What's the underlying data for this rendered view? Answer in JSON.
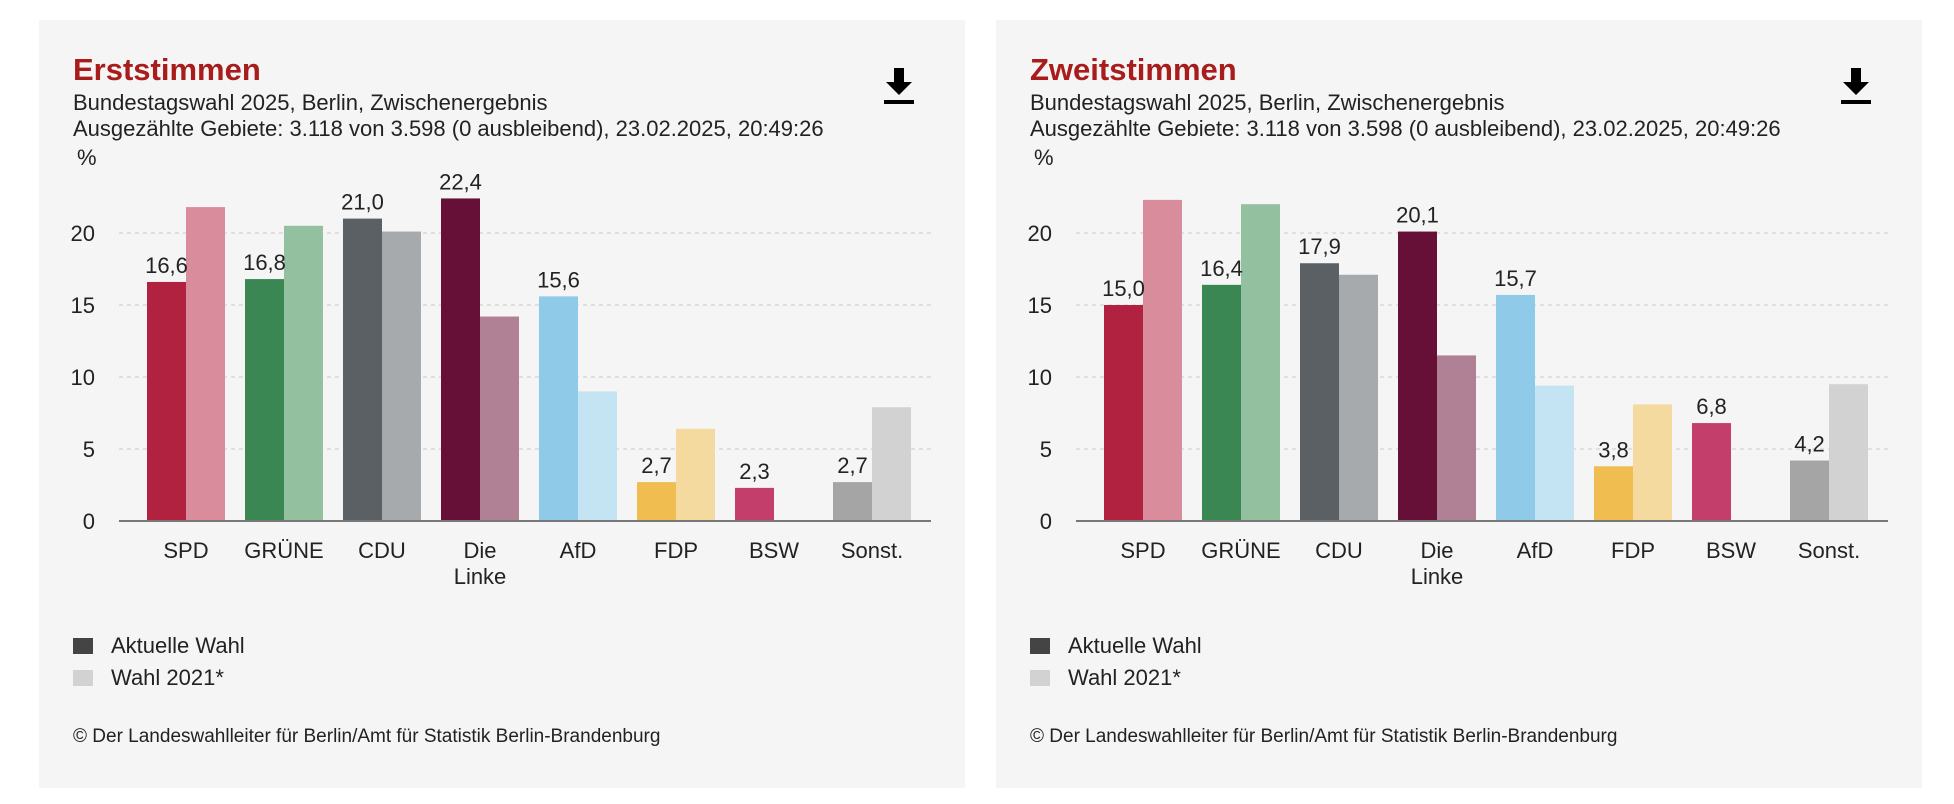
{
  "legend": {
    "current": "Aktuelle Wahl",
    "previous": "Wahl 2021*",
    "current_color": "#444444",
    "previous_color": "#d2d2d2"
  },
  "footer": "© Der Landeswahlleiter für Berlin/Amt für Statistik Berlin-Brandenburg",
  "download_icon": "download-icon",
  "chart_data": [
    {
      "type": "bar",
      "title": "Erststimmen",
      "subtitle": "Bundestagswahl 2025, Berlin, Zwischenergebnis",
      "info": "Ausgezählte Gebiete: 3.118 von 3.598 (0 ausbleibend), 23.02.2025, 20:49:26",
      "ylabel": "%",
      "ylim": [
        0,
        25
      ],
      "yticks": [
        0,
        5,
        10,
        15,
        20
      ],
      "grid": true,
      "categories": [
        [
          "SPD"
        ],
        [
          "GRÜNE"
        ],
        [
          "CDU"
        ],
        [
          "Die",
          "Linke"
        ],
        [
          "AfD"
        ],
        [
          "FDP"
        ],
        [
          "BSW"
        ],
        [
          "Sonst."
        ]
      ],
      "colors": [
        "#b02240",
        "#3a8753",
        "#5a6064",
        "#661038",
        "#8fcae9",
        "#f0bd50",
        "#c33e6a",
        "#a5a5a5"
      ],
      "prev_colors": [
        "#d88c9c",
        "#93c09f",
        "#a6aaac",
        "#b08194",
        "#c4e4f4",
        "#f5da9f",
        "#dd9ab2",
        "#d2d2d2"
      ],
      "series": [
        {
          "name": "Aktuelle Wahl",
          "values": [
            16.6,
            16.8,
            21.0,
            22.4,
            15.6,
            2.7,
            2.3,
            2.7
          ],
          "labels": [
            "16,6",
            "16,8",
            "21,0",
            "22,4",
            "15,6",
            "2,7",
            "2,3",
            "2,7"
          ]
        },
        {
          "name": "Wahl 2021*",
          "values": [
            21.8,
            20.5,
            20.1,
            14.2,
            9.0,
            6.4,
            null,
            7.9
          ]
        }
      ]
    },
    {
      "type": "bar",
      "title": "Zweitstimmen",
      "subtitle": "Bundestagswahl 2025, Berlin, Zwischenergebnis",
      "info": "Ausgezählte Gebiete: 3.118 von 3.598 (0 ausbleibend), 23.02.2025, 20:49:26",
      "ylabel": "%",
      "ylim": [
        0,
        25
      ],
      "yticks": [
        0,
        5,
        10,
        15,
        20
      ],
      "grid": true,
      "categories": [
        [
          "SPD"
        ],
        [
          "GRÜNE"
        ],
        [
          "CDU"
        ],
        [
          "Die",
          "Linke"
        ],
        [
          "AfD"
        ],
        [
          "FDP"
        ],
        [
          "BSW"
        ],
        [
          "Sonst."
        ]
      ],
      "colors": [
        "#b02240",
        "#3a8753",
        "#5a6064",
        "#661038",
        "#8fcae9",
        "#f0bd50",
        "#c33e6a",
        "#a5a5a5"
      ],
      "prev_colors": [
        "#d88c9c",
        "#93c09f",
        "#a6aaac",
        "#b08194",
        "#c4e4f4",
        "#f5da9f",
        "#dd9ab2",
        "#d2d2d2"
      ],
      "series": [
        {
          "name": "Aktuelle Wahl",
          "values": [
            15.0,
            16.4,
            17.9,
            20.1,
            15.7,
            3.8,
            6.8,
            4.2
          ],
          "labels": [
            "15,0",
            "16,4",
            "17,9",
            "20,1",
            "15,7",
            "3,8",
            "6,8",
            "4,2"
          ]
        },
        {
          "name": "Wahl 2021*",
          "values": [
            22.3,
            22.0,
            17.1,
            11.5,
            9.4,
            8.1,
            null,
            9.5
          ]
        }
      ]
    }
  ]
}
